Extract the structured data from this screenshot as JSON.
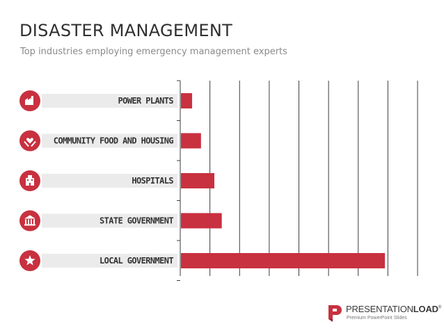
{
  "header": {
    "title": "DISASTER MANAGEMENT",
    "subtitle": "Top industries employing emergency management experts"
  },
  "colors": {
    "bar": "#c8313f",
    "icon_bg": "#c8313f",
    "label_bg": "#ebebeb",
    "grid": "#3c3c3c",
    "title": "#2f2f2f",
    "subtitle": "#8a8a8a"
  },
  "chart_data": {
    "type": "bar",
    "orientation": "horizontal",
    "categories": [
      "POWER PLANTS",
      "COMMUNITY FOOD AND HOUSING",
      "HOSPITALS",
      "STATE GOVERNMENT",
      "LOCAL GOVERNMENT"
    ],
    "icons": [
      "factory-icon",
      "hands-heart-icon",
      "hospital-icon",
      "government-building-icon",
      "star-icon"
    ],
    "values": [
      4,
      7,
      11.5,
      14,
      69
    ],
    "xlim": [
      0,
      80
    ],
    "x_gridlines": [
      0,
      10,
      20,
      30,
      40,
      50,
      60,
      70,
      80
    ],
    "grid": true,
    "axis_tick_labels_shown": false
  },
  "footer": {
    "brand_light": "PRESENTATION",
    "brand_bold": "LOAD",
    "brand_mark": "®",
    "tagline": "Premium PowerPoint Slides"
  }
}
